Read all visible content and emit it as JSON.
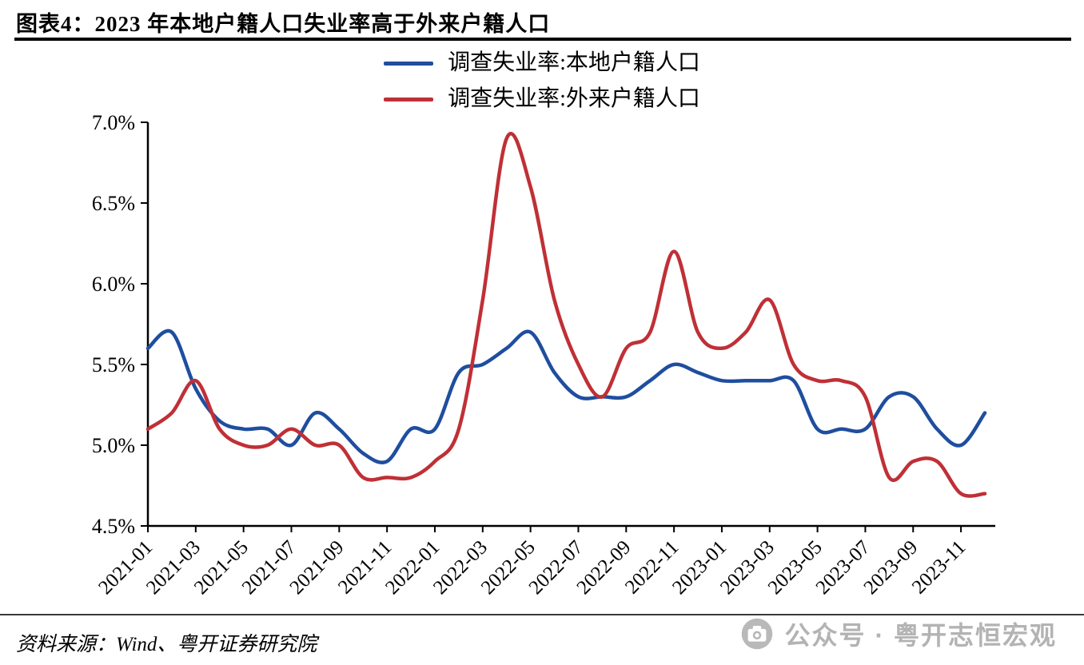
{
  "header": {
    "title": "图表4：2023 年本地户籍人口失业率高于外来户籍人口"
  },
  "chart_data": {
    "type": "line",
    "title": "图表4：2023 年本地户籍人口失业率高于外来户籍人口",
    "xlabel": "",
    "ylabel": "",
    "ylim": [
      4.5,
      7.0
    ],
    "yticks": [
      4.5,
      5.0,
      5.5,
      6.0,
      6.5,
      7.0
    ],
    "ytick_labels": [
      "4.5%",
      "5.0%",
      "5.5%",
      "6.0%",
      "6.5%",
      "7.0%"
    ],
    "xtick_every": 2,
    "grid": false,
    "legend_position": "top-center",
    "axis_color": "#000000",
    "categories": [
      "2021-01",
      "2021-02",
      "2021-03",
      "2021-04",
      "2021-05",
      "2021-06",
      "2021-07",
      "2021-08",
      "2021-09",
      "2021-10",
      "2021-11",
      "2021-12",
      "2022-01",
      "2022-02",
      "2022-03",
      "2022-04",
      "2022-05",
      "2022-06",
      "2022-07",
      "2022-08",
      "2022-09",
      "2022-10",
      "2022-11",
      "2022-12",
      "2023-01",
      "2023-02",
      "2023-03",
      "2023-04",
      "2023-05",
      "2023-06",
      "2023-07",
      "2023-08",
      "2023-09",
      "2023-10",
      "2023-11",
      "2023-12"
    ],
    "series": [
      {
        "name": "调查失业率:本地户籍人口",
        "color": "#1F4E9F",
        "values": [
          5.6,
          5.7,
          5.35,
          5.15,
          5.1,
          5.1,
          5.0,
          5.2,
          5.1,
          4.95,
          4.9,
          5.1,
          5.1,
          5.45,
          5.5,
          5.6,
          5.7,
          5.45,
          5.3,
          5.3,
          5.3,
          5.4,
          5.5,
          5.45,
          5.4,
          5.4,
          5.4,
          5.4,
          5.1,
          5.1,
          5.1,
          5.3,
          5.3,
          5.1,
          5.0,
          5.2
        ]
      },
      {
        "name": "调查失业率:外来户籍人口",
        "color": "#BF3036",
        "values": [
          5.1,
          5.2,
          5.4,
          5.1,
          5.0,
          5.0,
          5.1,
          5.0,
          5.0,
          4.8,
          4.8,
          4.8,
          4.9,
          5.1,
          5.9,
          6.9,
          6.6,
          5.9,
          5.5,
          5.3,
          5.6,
          5.7,
          6.2,
          5.7,
          5.6,
          5.7,
          5.9,
          5.5,
          5.4,
          5.4,
          5.3,
          4.8,
          4.9,
          4.9,
          4.7,
          4.7
        ]
      }
    ]
  },
  "footer": {
    "source": "资料来源：Wind、粤开证券研究院",
    "watermark": "公众号 · 粤开志恒宏观"
  },
  "icons": {
    "watermark_icon": "camera-icon"
  }
}
